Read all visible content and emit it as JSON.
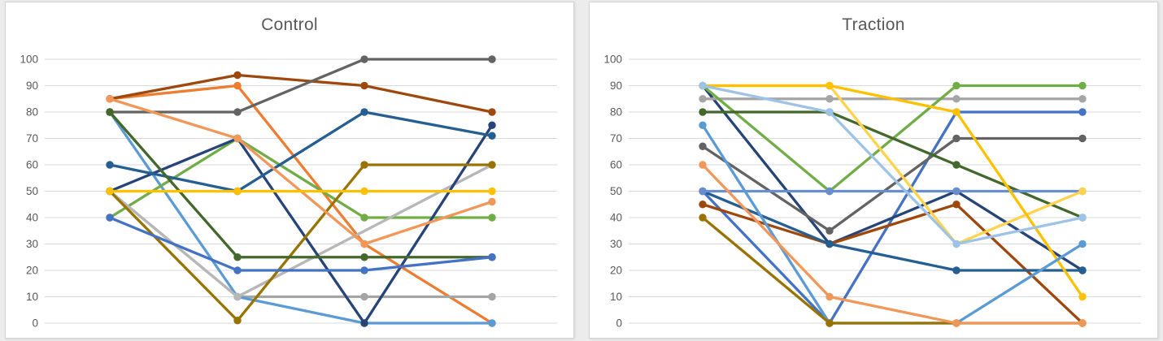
{
  "style": {
    "title_color": "#595959",
    "tick_color": "#595959",
    "gridline_color": "#d9d9d9",
    "panel_border_color": "#d4d4d4",
    "panel_background": "#ffffff",
    "page_background": "#ececec"
  },
  "chart_data": [
    {
      "type": "line",
      "title": "Control",
      "xlabel": "",
      "ylabel": "",
      "ylim": [
        0,
        100
      ],
      "ytick_step": 10,
      "ytick_labels": [
        "0",
        "10",
        "20",
        "30",
        "40",
        "50",
        "60",
        "70",
        "80",
        "90",
        "100"
      ],
      "x_point_count": 4,
      "x_labels": [
        "",
        "",
        "",
        ""
      ],
      "grid": true,
      "legend": "none",
      "markers": true,
      "series": [
        {
          "name": "orange",
          "color": "#ED7D31",
          "values": [
            85,
            90,
            30,
            0
          ]
        },
        {
          "name": "gray",
          "color": "#A5A5A5",
          "values": [
            50,
            10,
            10,
            10
          ]
        },
        {
          "name": "light-blue",
          "color": "#5B9BD5",
          "values": [
            80,
            10,
            0,
            0
          ]
        },
        {
          "name": "green",
          "color": "#70AD47",
          "values": [
            40,
            70,
            40,
            40
          ]
        },
        {
          "name": "silver",
          "color": "#B7B7B7",
          "values": [
            50,
            10,
            null,
            60
          ]
        },
        {
          "name": "navy",
          "color": "#264478",
          "values": [
            50,
            70,
            0,
            75
          ]
        },
        {
          "name": "brown",
          "color": "#9E480E",
          "values": [
            85,
            94,
            90,
            80
          ]
        },
        {
          "name": "dark-gray",
          "color": "#636363",
          "values": [
            80,
            80,
            100,
            100
          ]
        },
        {
          "name": "dark-gold",
          "color": "#997300",
          "values": [
            50,
            1,
            60,
            60
          ]
        },
        {
          "name": "steel-blue",
          "color": "#255E91",
          "values": [
            60,
            50,
            80,
            71
          ]
        },
        {
          "name": "dark-green",
          "color": "#43682B",
          "values": [
            80,
            25,
            25,
            25
          ]
        },
        {
          "name": "royal-blue",
          "color": "#4472C4",
          "values": [
            40,
            20,
            20,
            25
          ]
        },
        {
          "name": "salmon",
          "color": "#F1975A",
          "values": [
            85,
            70,
            30,
            46
          ]
        },
        {
          "name": "gold",
          "color": "#FFC000",
          "values": [
            50,
            50,
            50,
            50
          ]
        }
      ]
    },
    {
      "type": "line",
      "title": "Traction",
      "xlabel": "",
      "ylabel": "",
      "ylim": [
        0,
        100
      ],
      "ytick_step": 10,
      "ytick_labels": [
        "0",
        "10",
        "20",
        "30",
        "40",
        "50",
        "60",
        "70",
        "80",
        "90",
        "100"
      ],
      "x_point_count": 4,
      "x_labels": [
        "",
        "",
        "",
        ""
      ],
      "grid": true,
      "legend": "none",
      "markers": true,
      "series": [
        {
          "name": "royal-blue",
          "color": "#4472C4",
          "values": [
            50,
            0,
            80,
            80
          ]
        },
        {
          "name": "navy",
          "color": "#264478",
          "values": [
            90,
            30,
            50,
            20
          ]
        },
        {
          "name": "brown",
          "color": "#9E480E",
          "values": [
            45,
            30,
            45,
            0
          ]
        },
        {
          "name": "steel-blue",
          "color": "#255E91",
          "values": [
            50,
            30,
            20,
            20
          ]
        },
        {
          "name": "dark-gray",
          "color": "#636363",
          "values": [
            67,
            35,
            70,
            70
          ]
        },
        {
          "name": "gray",
          "color": "#A5A5A5",
          "values": [
            85,
            85,
            85,
            85
          ]
        },
        {
          "name": "green",
          "color": "#70AD47",
          "values": [
            90,
            50,
            90,
            90
          ]
        },
        {
          "name": "dark-green",
          "color": "#43682B",
          "values": [
            80,
            80,
            60,
            40
          ]
        },
        {
          "name": "periwinkle",
          "color": "#698ED0",
          "values": [
            50,
            50,
            50,
            50
          ]
        },
        {
          "name": "light-gold",
          "color": "#FFD34D",
          "values": [
            90,
            90,
            30,
            50
          ]
        },
        {
          "name": "gold",
          "color": "#FFC000",
          "values": [
            90,
            90,
            80,
            10
          ]
        },
        {
          "name": "light-blue",
          "color": "#5B9BD5",
          "values": [
            75,
            0,
            0,
            30
          ]
        },
        {
          "name": "dark-gold",
          "color": "#997300",
          "values": [
            40,
            0,
            0,
            0
          ]
        },
        {
          "name": "pale-blue",
          "color": "#9DC3E6",
          "values": [
            90,
            80,
            30,
            40
          ]
        },
        {
          "name": "salmon",
          "color": "#F1975A",
          "values": [
            60,
            10,
            0,
            0
          ]
        }
      ]
    }
  ]
}
